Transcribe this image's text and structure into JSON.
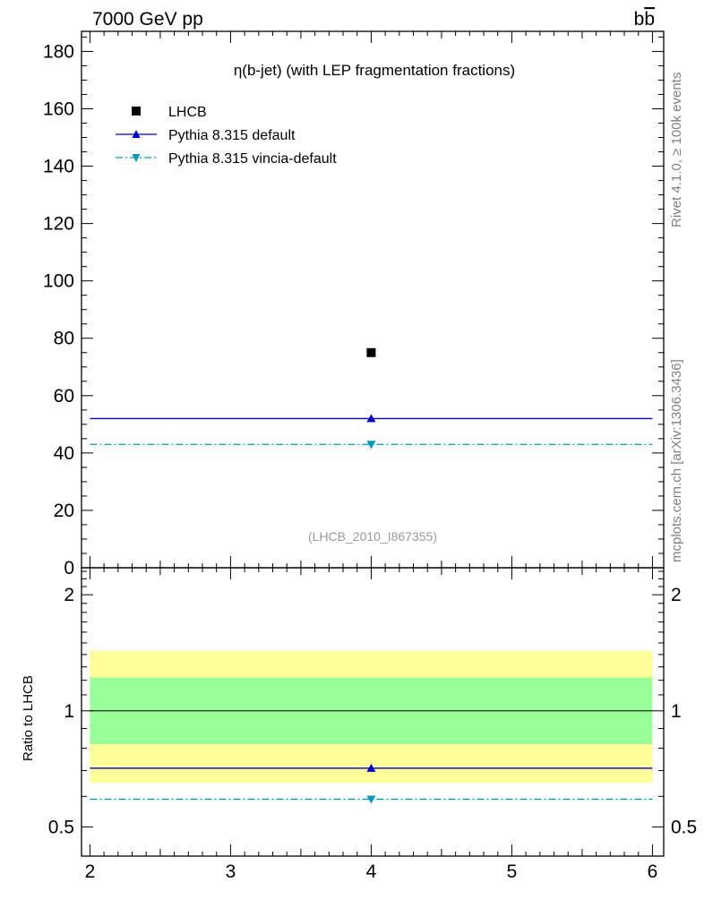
{
  "header": {
    "energy_label": "7000 GeV pp",
    "process_label_base": "b",
    "process_label_bar": "b"
  },
  "side_labels": {
    "rivet": "Rivet 4.1.0, ≥ 100k events",
    "mcplots": "mcplots.cern.ch [arXiv:1306.3436]"
  },
  "colors": {
    "lhcb": "#000000",
    "pythia_default": "#0000cc",
    "pythia_vincia": "#0099bb",
    "band_inner": "#99ff99",
    "band_outer": "#ffff99"
  },
  "chart_data": [
    {
      "type": "scatter",
      "title": "η(b-jet) (with LEP fragmentation fractions)",
      "watermark": "(LHCB_2010_I867355)",
      "x_range": [
        1.94,
        6.08
      ],
      "ylim": [
        0,
        187
      ],
      "y_ticks": [
        0,
        20,
        40,
        60,
        80,
        100,
        120,
        140,
        160,
        180
      ],
      "series": [
        {
          "name": "LHCB",
          "marker": "square",
          "x": [
            4
          ],
          "y": [
            75
          ],
          "x_low": [
            4
          ],
          "x_high": [
            4
          ]
        },
        {
          "name": "Pythia 8.315 default",
          "marker": "triangle-up",
          "line": "solid",
          "x": [
            4
          ],
          "y": [
            52
          ],
          "x_low": [
            2
          ],
          "x_high": [
            6
          ]
        },
        {
          "name": "Pythia 8.315 vincia-default",
          "marker": "triangle-down",
          "line": "dashdot",
          "x": [
            4
          ],
          "y": [
            43
          ],
          "x_low": [
            2
          ],
          "x_high": [
            6
          ]
        }
      ]
    },
    {
      "type": "line",
      "ylabel": "Ratio to LHCB",
      "x_range": [
        1.94,
        6.08
      ],
      "ylim": [
        0.42,
        2.35
      ],
      "y_scale": "log",
      "x_ticks": [
        2,
        3,
        4,
        5,
        6
      ],
      "y_ticks": [
        0.5,
        1,
        2
      ],
      "y_tick_labels": [
        "0.5",
        "1",
        "2"
      ],
      "reference": 1,
      "band_inner": [
        0.82,
        1.22
      ],
      "band_outer": [
        0.65,
        1.43
      ],
      "series": [
        {
          "name": "Pythia 8.315 default",
          "x": [
            4
          ],
          "y": [
            0.71
          ],
          "x_low": [
            2
          ],
          "x_high": [
            6
          ]
        },
        {
          "name": "Pythia 8.315 vincia-default",
          "x": [
            4
          ],
          "y": [
            0.59
          ],
          "x_low": [
            2
          ],
          "x_high": [
            6
          ]
        }
      ]
    }
  ]
}
